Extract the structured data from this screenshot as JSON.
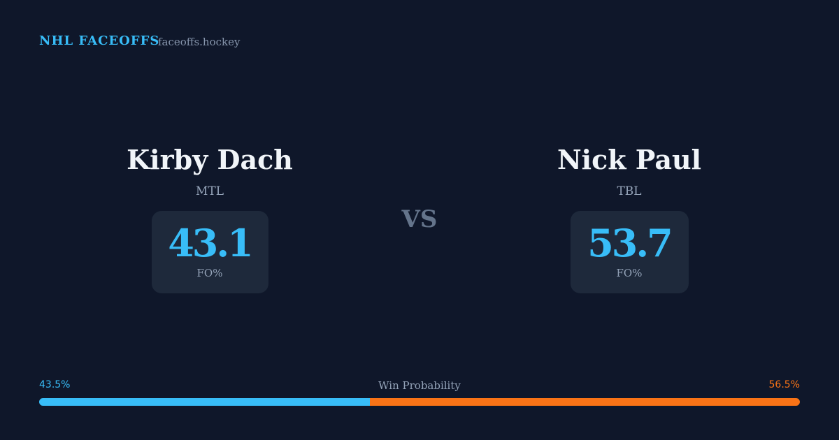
{
  "header": {
    "brand": "NHL FACEOFFS",
    "site": "faceoffs.hockey"
  },
  "players": [
    {
      "name": "Kirby Dach",
      "team": "MTL",
      "fo_pct": 43.1,
      "stat_label": "FO%"
    },
    {
      "name": "Nick Paul",
      "team": "TBL",
      "fo_pct": 53.7,
      "stat_label": "FO%"
    }
  ],
  "vs": "VS",
  "win_probability": {
    "label": "Win Probability",
    "values": [
      43.5,
      56.5
    ],
    "value_labels": [
      "43.5%",
      "56.5%"
    ],
    "colors": [
      "#38bdf8",
      "#f97316"
    ]
  }
}
